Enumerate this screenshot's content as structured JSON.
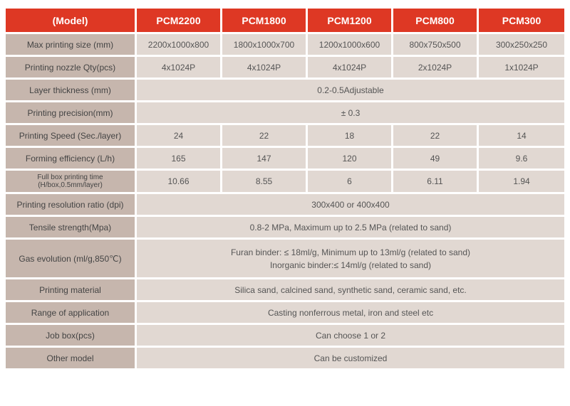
{
  "colors": {
    "header_bg": "#de3824",
    "header_fg": "#ffffff",
    "label_bg": "#c6b6ad",
    "value_bg": "#e1d8d2",
    "text": "#555555",
    "gap": "#ffffff"
  },
  "header": {
    "model": "(Model)",
    "c1": "PCM2200",
    "c2": "PCM1800",
    "c3": "PCM1200",
    "c4": "PCM800",
    "c5": "PCM300"
  },
  "rows": {
    "max_size": {
      "label": "Max printing size (mm)",
      "v1": "2200x1000x800",
      "v2": "1800x1000x700",
      "v3": "1200x1000x600",
      "v4": "800x750x500",
      "v5": "300x250x250"
    },
    "nozzle": {
      "label": "Printing nozzle Qty(pcs)",
      "v1": "4x1024P",
      "v2": "4x1024P",
      "v3": "4x1024P",
      "v4": "2x1024P",
      "v5": "1x1024P"
    },
    "layer": {
      "label": "Layer thickness (mm)",
      "span": "0.2-0.5Adjustable"
    },
    "precision": {
      "label": "Printing precision(mm)",
      "span": "± 0.3"
    },
    "speed": {
      "label": "Printing Speed (Sec./layer)",
      "v1": "24",
      "v2": "22",
      "v3": "18",
      "v4": "22",
      "v5": "14"
    },
    "efficiency": {
      "label": "Forming efficiency (L/h)",
      "v1": "165",
      "v2": "147",
      "v3": "120",
      "v4": "49",
      "v5": "9.6"
    },
    "fullbox": {
      "label": "Full box printing time (H/box,0.5mm/layer)",
      "v1": "10.66",
      "v2": "8.55",
      "v3": "6",
      "v4": "6.11",
      "v5": "1.94"
    },
    "resolution": {
      "label": "Printing resolution ratio (dpi)",
      "span": "300x400 or 400x400"
    },
    "tensile": {
      "label": "Tensile strength(Mpa)",
      "span": "0.8-2 MPa, Maximum up to 2.5 MPa (related to sand)"
    },
    "gas": {
      "label": "Gas evolution (ml/g,850℃)",
      "line1": "Furan binder: ≤ 18ml/g, Minimum up to 13ml/g (related  to sand)",
      "line2": "Inorganic binder:≤ 14ml/g (related to sand)"
    },
    "material": {
      "label": "Printing material",
      "span": "Silica sand, calcined sand, synthetic sand, ceramic sand, etc."
    },
    "application": {
      "label": "Range of application",
      "span": "Casting nonferrous metal, iron and  steel etc"
    },
    "jobbox": {
      "label": "Job box(pcs)",
      "span": "Can choose 1 or 2"
    },
    "other": {
      "label": "Other model",
      "span": "Can be customized"
    }
  }
}
